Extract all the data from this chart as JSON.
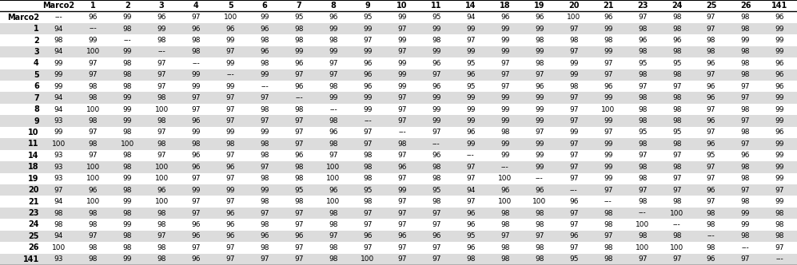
{
  "columns": [
    "Marco2",
    "1",
    "2",
    "3",
    "4",
    "5",
    "6",
    "7",
    "8",
    "9",
    "10",
    "11",
    "14",
    "18",
    "19",
    "20",
    "21",
    "23",
    "24",
    "25",
    "26",
    "141"
  ],
  "rows": [
    "Marco2",
    "1",
    "2",
    "3",
    "4",
    "5",
    "6",
    "7",
    "8",
    "9",
    "10",
    "11",
    "14",
    "18",
    "19",
    "20",
    "21",
    "23",
    "24",
    "25",
    "26",
    "141"
  ],
  "data": [
    [
      "---",
      "96",
      "99",
      "96",
      "97",
      "100",
      "99",
      "95",
      "96",
      "95",
      "99",
      "95",
      "94",
      "96",
      "96",
      "100",
      "96",
      "97",
      "98",
      "97",
      "98",
      "96"
    ],
    [
      "94",
      "---",
      "98",
      "99",
      "96",
      "96",
      "96",
      "98",
      "99",
      "99",
      "97",
      "99",
      "99",
      "99",
      "99",
      "97",
      "99",
      "98",
      "98",
      "97",
      "98",
      "99"
    ],
    [
      "98",
      "99",
      "---",
      "98",
      "98",
      "99",
      "98",
      "98",
      "98",
      "97",
      "99",
      "98",
      "97",
      "99",
      "98",
      "98",
      "98",
      "96",
      "96",
      "98",
      "99",
      "99"
    ],
    [
      "94",
      "100",
      "99",
      "---",
      "98",
      "97",
      "96",
      "99",
      "99",
      "99",
      "97",
      "99",
      "99",
      "99",
      "99",
      "97",
      "99",
      "98",
      "98",
      "98",
      "98",
      "99"
    ],
    [
      "99",
      "97",
      "98",
      "97",
      "---",
      "99",
      "98",
      "96",
      "97",
      "96",
      "99",
      "96",
      "95",
      "97",
      "98",
      "99",
      "97",
      "95",
      "95",
      "96",
      "98",
      "96"
    ],
    [
      "99",
      "97",
      "98",
      "97",
      "99",
      "---",
      "99",
      "97",
      "97",
      "96",
      "99",
      "97",
      "96",
      "97",
      "97",
      "99",
      "97",
      "98",
      "98",
      "97",
      "98",
      "96"
    ],
    [
      "99",
      "98",
      "98",
      "97",
      "99",
      "99",
      "---",
      "96",
      "98",
      "96",
      "99",
      "96",
      "95",
      "97",
      "96",
      "98",
      "96",
      "97",
      "97",
      "96",
      "97",
      "96"
    ],
    [
      "94",
      "98",
      "99",
      "98",
      "97",
      "97",
      "97",
      "---",
      "99",
      "99",
      "97",
      "99",
      "99",
      "99",
      "99",
      "97",
      "99",
      "98",
      "98",
      "96",
      "97",
      "99"
    ],
    [
      "94",
      "100",
      "99",
      "100",
      "97",
      "97",
      "98",
      "98",
      "---",
      "99",
      "97",
      "99",
      "99",
      "99",
      "99",
      "97",
      "100",
      "98",
      "98",
      "97",
      "98",
      "99"
    ],
    [
      "93",
      "98",
      "99",
      "98",
      "96",
      "97",
      "97",
      "97",
      "98",
      "---",
      "97",
      "99",
      "99",
      "99",
      "99",
      "97",
      "99",
      "98",
      "98",
      "96",
      "97",
      "99"
    ],
    [
      "99",
      "97",
      "98",
      "97",
      "99",
      "99",
      "99",
      "97",
      "96",
      "97",
      "---",
      "97",
      "96",
      "98",
      "97",
      "99",
      "97",
      "95",
      "95",
      "97",
      "98",
      "96"
    ],
    [
      "100",
      "98",
      "100",
      "98",
      "98",
      "98",
      "98",
      "97",
      "98",
      "97",
      "98",
      "---",
      "99",
      "99",
      "99",
      "97",
      "99",
      "98",
      "98",
      "96",
      "97",
      "99"
    ],
    [
      "93",
      "97",
      "98",
      "97",
      "96",
      "97",
      "98",
      "96",
      "97",
      "98",
      "97",
      "96",
      "---",
      "99",
      "99",
      "97",
      "99",
      "97",
      "97",
      "95",
      "96",
      "99"
    ],
    [
      "93",
      "100",
      "98",
      "100",
      "96",
      "96",
      "97",
      "98",
      "100",
      "98",
      "96",
      "98",
      "97",
      "---",
      "99",
      "97",
      "99",
      "98",
      "98",
      "97",
      "98",
      "99"
    ],
    [
      "93",
      "100",
      "99",
      "100",
      "97",
      "97",
      "98",
      "98",
      "100",
      "98",
      "97",
      "98",
      "97",
      "100",
      "---",
      "97",
      "99",
      "98",
      "97",
      "97",
      "98",
      "99"
    ],
    [
      "97",
      "96",
      "98",
      "96",
      "99",
      "99",
      "99",
      "95",
      "96",
      "95",
      "99",
      "95",
      "94",
      "96",
      "96",
      "---",
      "97",
      "97",
      "97",
      "96",
      "97",
      "97"
    ],
    [
      "94",
      "100",
      "99",
      "100",
      "97",
      "97",
      "98",
      "98",
      "100",
      "98",
      "97",
      "98",
      "97",
      "100",
      "100",
      "96",
      "---",
      "98",
      "98",
      "97",
      "98",
      "99"
    ],
    [
      "98",
      "98",
      "98",
      "98",
      "97",
      "96",
      "97",
      "97",
      "98",
      "97",
      "97",
      "97",
      "96",
      "98",
      "98",
      "97",
      "98",
      "---",
      "100",
      "98",
      "99",
      "98"
    ],
    [
      "98",
      "98",
      "99",
      "98",
      "96",
      "96",
      "98",
      "97",
      "98",
      "97",
      "97",
      "97",
      "96",
      "98",
      "98",
      "97",
      "98",
      "100",
      "---",
      "98",
      "99",
      "98"
    ],
    [
      "94",
      "97",
      "98",
      "97",
      "96",
      "96",
      "96",
      "96",
      "97",
      "96",
      "96",
      "96",
      "95",
      "97",
      "97",
      "96",
      "97",
      "98",
      "98",
      "---",
      "98",
      "98"
    ],
    [
      "100",
      "98",
      "98",
      "98",
      "97",
      "97",
      "98",
      "97",
      "98",
      "97",
      "97",
      "97",
      "96",
      "98",
      "98",
      "97",
      "98",
      "100",
      "100",
      "98",
      "---",
      "97"
    ],
    [
      "93",
      "98",
      "99",
      "98",
      "96",
      "97",
      "97",
      "97",
      "98",
      "100",
      "97",
      "97",
      "98",
      "98",
      "98",
      "95",
      "98",
      "97",
      "97",
      "96",
      "97",
      "---"
    ]
  ],
  "row_even_bg": "#ffffff",
  "row_odd_bg": "#dcdcdc",
  "header_bg": "#ffffff",
  "text_color": "#000000",
  "figsize": [
    9.97,
    3.32
  ],
  "dpi": 100,
  "header_fontsize": 7.0,
  "cell_fontsize": 6.5,
  "row_label_fontsize": 7.0
}
